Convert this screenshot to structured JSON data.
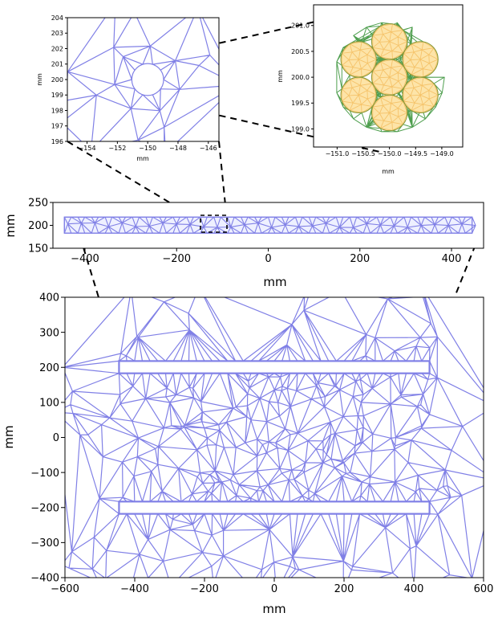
{
  "chart_data": [
    {
      "panel": "inset-left",
      "type": "mesh",
      "xlabel": "mm",
      "ylabel": "mm",
      "xlim": [
        -155.3,
        -145.3
      ],
      "ylim": [
        196,
        204
      ],
      "xticks": [
        -154,
        -152,
        -150,
        -148,
        -146
      ],
      "xtick_labels": [
        "−154",
        "−152",
        "−150",
        "−148",
        "−146"
      ],
      "yticks": [
        196,
        197,
        198,
        199,
        200,
        201,
        202,
        203,
        204
      ],
      "ytick_labels": [
        "196",
        "197",
        "198",
        "199",
        "200",
        "201",
        "202",
        "203",
        "204"
      ],
      "hole_center": [
        -150,
        200
      ],
      "hole_radius": 1.05,
      "mesh_color": "#8080e6"
    },
    {
      "panel": "inset-right",
      "type": "mesh",
      "xlabel": "mm",
      "ylabel": "mm",
      "xlim": [
        -151.45,
        -148.6
      ],
      "ylim": [
        198.65,
        201.4
      ],
      "xticks": [
        -151.0,
        -150.5,
        -150.0,
        -149.5,
        -149.0
      ],
      "xtick_labels": [
        "−151.0",
        "−150.5",
        "−150.0",
        "−149.5",
        "−149.0"
      ],
      "yticks": [
        199.0,
        199.5,
        200.0,
        200.5,
        201.0
      ],
      "ytick_labels": [
        "199.0",
        "199.5",
        "200.0",
        "200.5",
        "201.0"
      ],
      "conductor_center": [
        -150,
        200
      ],
      "conductor_radius": 1.05,
      "strand_radius": 0.34,
      "strand_count": 7,
      "strand_fill_color": "#fde4a8",
      "strand_mesh_color": "#f5c36a",
      "outer_mesh_color": "#4f9f4f"
    },
    {
      "panel": "middle-strip",
      "type": "mesh",
      "xlabel": "mm",
      "ylabel": "mm",
      "xlim": [
        -470,
        470
      ],
      "ylim": [
        150,
        250
      ],
      "xticks": [
        -400,
        -200,
        0,
        200,
        400
      ],
      "xtick_labels": [
        "−400",
        "−200",
        "0",
        "200",
        "400"
      ],
      "yticks": [
        150,
        200,
        250
      ],
      "ytick_labels": [
        "150",
        "200",
        "250"
      ],
      "strip_x": [
        -445,
        445
      ],
      "strip_y": [
        183,
        218
      ],
      "mesh_color": "#8080e6"
    },
    {
      "panel": "main",
      "type": "mesh",
      "xlabel": "mm",
      "ylabel": "mm",
      "xlim": [
        -600,
        600
      ],
      "ylim": [
        -400,
        400
      ],
      "xticks": [
        -600,
        -400,
        -200,
        0,
        200,
        400,
        600
      ],
      "xtick_labels": [
        "−600",
        "−400",
        "−200",
        "0",
        "200",
        "400",
        "600"
      ],
      "yticks": [
        -400,
        -300,
        -200,
        -100,
        0,
        100,
        200,
        300,
        400
      ],
      "ytick_labels": [
        "−400",
        "−300",
        "−200",
        "−100",
        "0",
        "100",
        "200",
        "300",
        "400"
      ],
      "conductor_strips": [
        {
          "x": [
            -445,
            445
          ],
          "y": [
            183,
            218
          ]
        },
        {
          "x": [
            -445,
            445
          ],
          "y": [
            -218,
            -183
          ]
        }
      ],
      "mesh_color": "#8080e6"
    }
  ]
}
